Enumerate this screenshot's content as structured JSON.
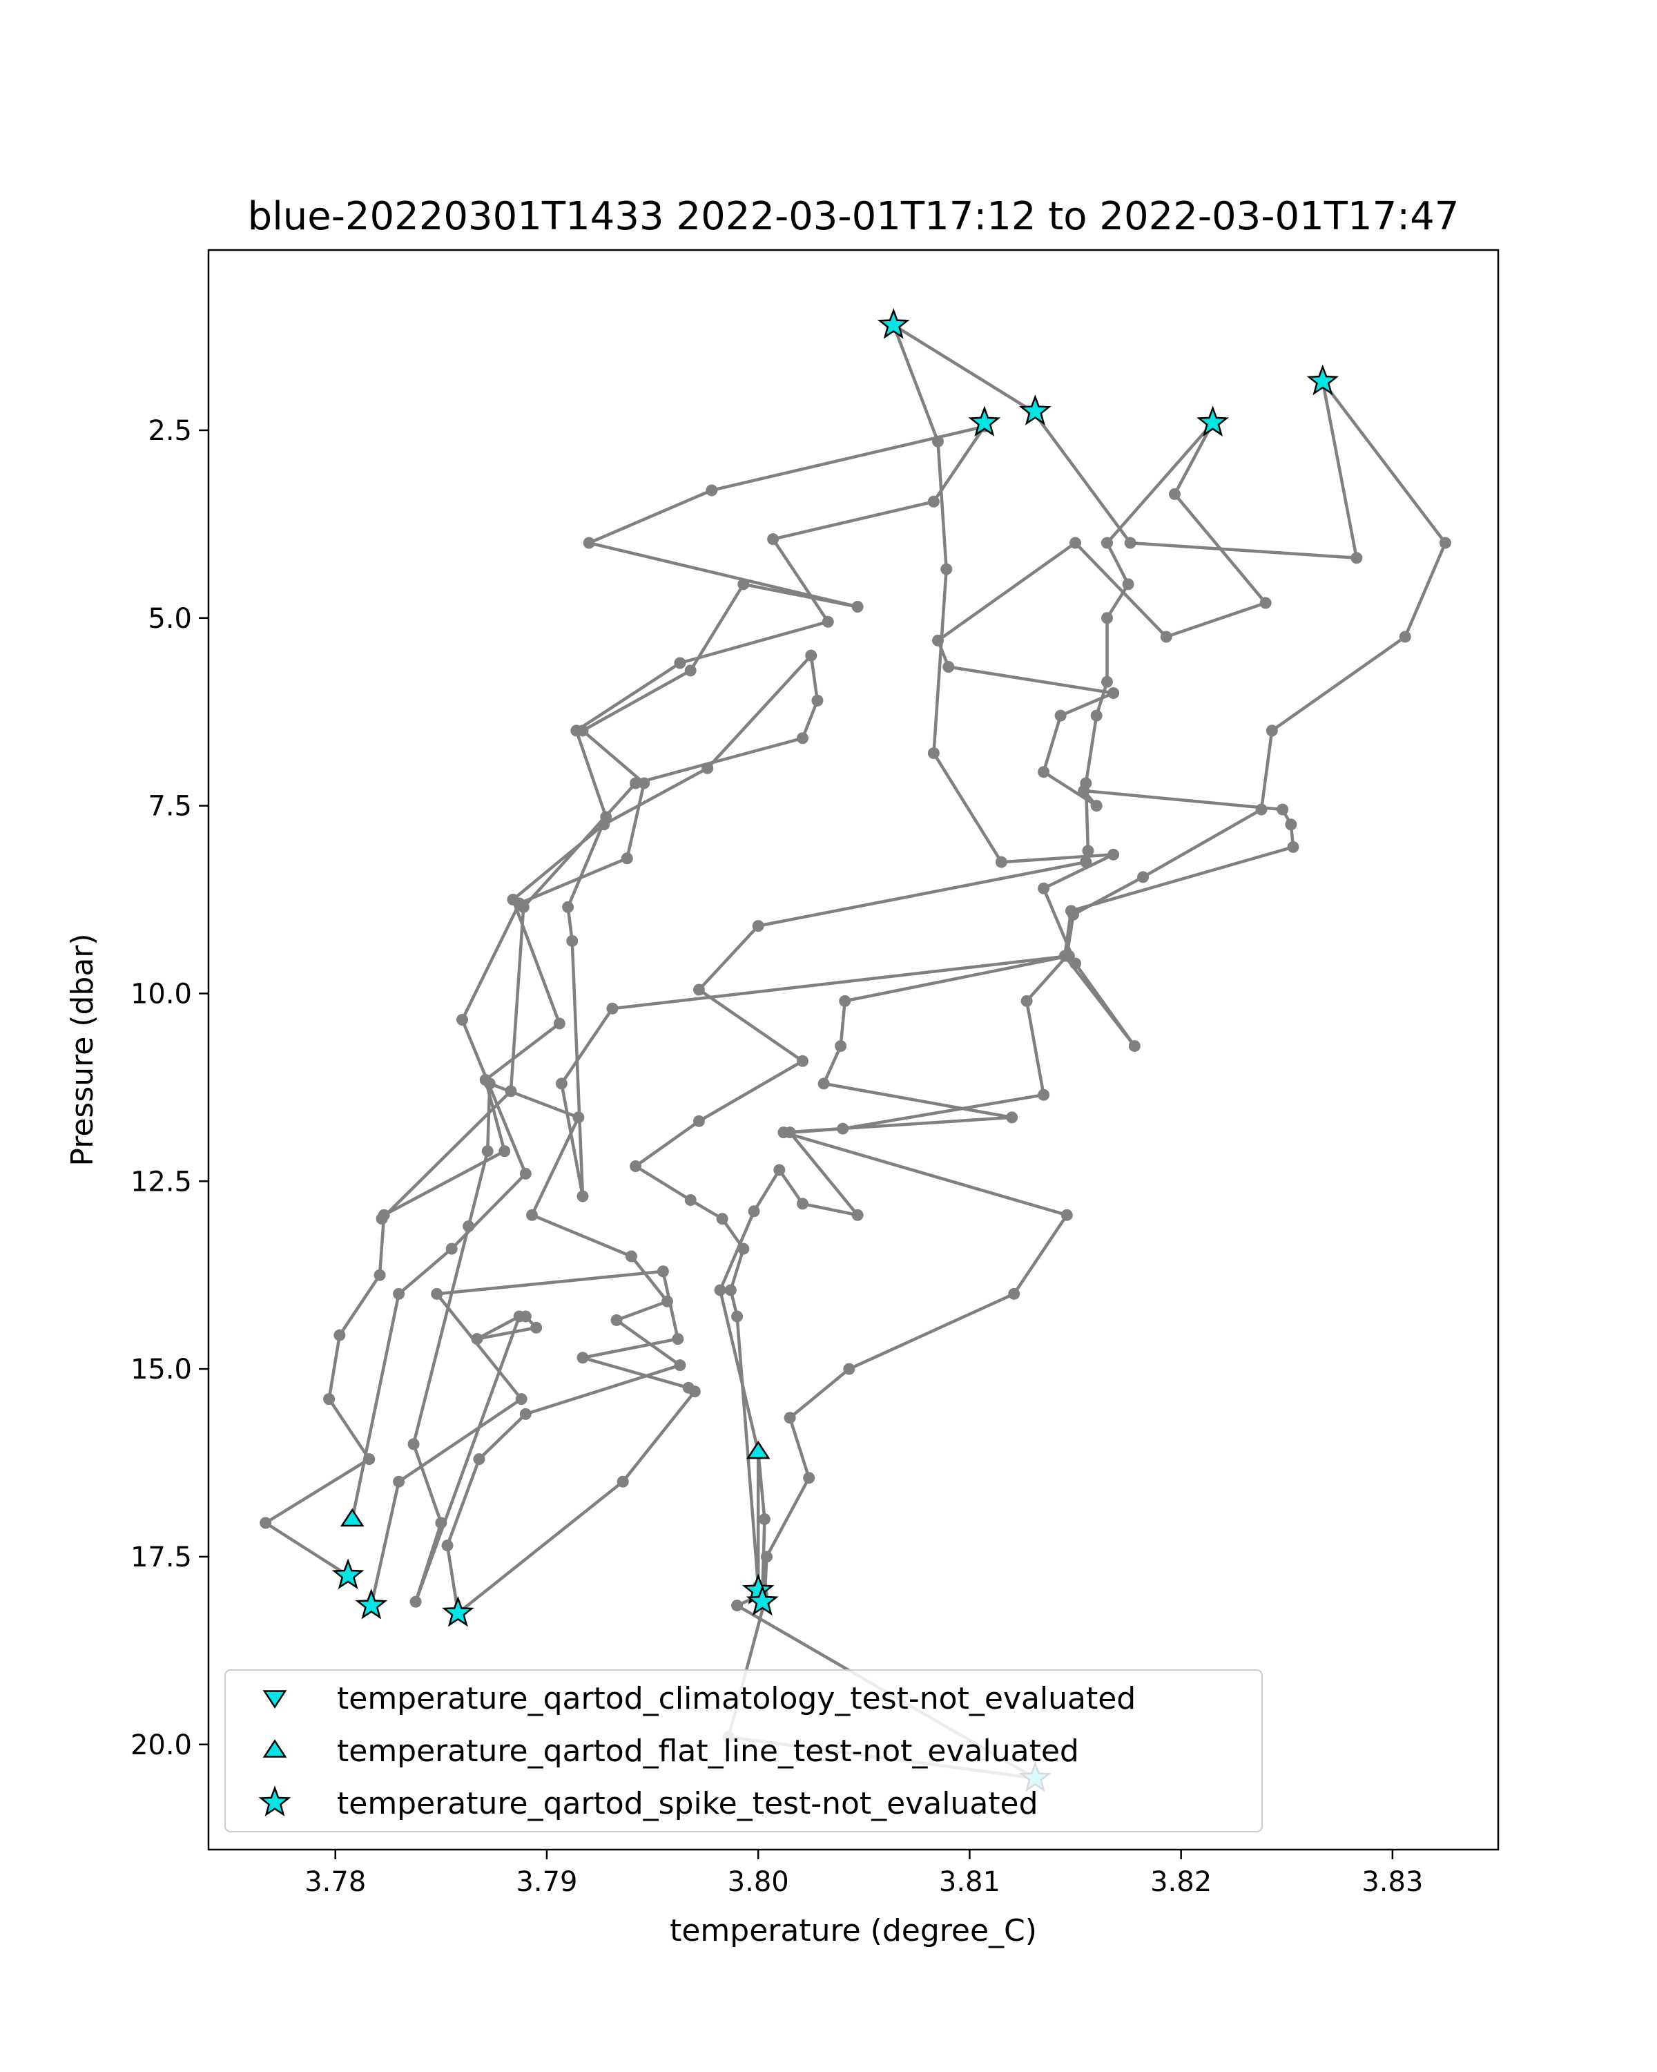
{
  "chart_data": {
    "type": "line",
    "title": "blue-20220301T1433 2022-03-01T17:12 to 2022-03-01T17:47",
    "xlabel": "temperature (degree_C)",
    "ylabel": "Pressure (dbar)",
    "xlim": [
      3.774,
      3.835
    ],
    "ylim": [
      21.4,
      0.1
    ],
    "y_inverted": true,
    "grid": false,
    "x_ticks": [
      3.78,
      3.79,
      3.8,
      3.81,
      3.82,
      3.83
    ],
    "x_tick_labels": [
      "3.78",
      "3.79",
      "3.80",
      "3.81",
      "3.82",
      "3.83"
    ],
    "y_ticks": [
      2.5,
      5.0,
      7.5,
      10.0,
      12.5,
      15.0,
      17.5,
      20.0
    ],
    "y_tick_labels": [
      "2.5",
      "5.0",
      "7.5",
      "10.0",
      "12.5",
      "15.0",
      "17.5",
      "20.0"
    ],
    "line_color": "#808080",
    "marker_color": "#00e5e5",
    "profile": [
      {
        "x": 3.7986,
        "y": 19.9
      },
      {
        "x": 3.8131,
        "y": 20.45
      },
      {
        "x": 3.799,
        "y": 18.15
      },
      {
        "x": 3.8002,
        "y": 18.0
      },
      {
        "x": 3.8003,
        "y": 17.0
      },
      {
        "x": 3.8,
        "y": 16.1
      },
      {
        "x": 3.8,
        "y": 17.9
      },
      {
        "x": 3.799,
        "y": 14.3
      },
      {
        "x": 3.7987,
        "y": 13.95
      },
      {
        "x": 3.7993,
        "y": 13.4
      },
      {
        "x": 3.7983,
        "y": 13.0
      },
      {
        "x": 3.7968,
        "y": 12.75
      },
      {
        "x": 3.7942,
        "y": 12.3
      },
      {
        "x": 3.7972,
        "y": 11.7
      },
      {
        "x": 3.8021,
        "y": 10.9
      },
      {
        "x": 3.7972,
        "y": 9.95
      },
      {
        "x": 3.8,
        "y": 9.1
      },
      {
        "x": 3.8155,
        "y": 8.25
      },
      {
        "x": 3.8156,
        "y": 8.1
      },
      {
        "x": 3.8155,
        "y": 7.2
      },
      {
        "x": 3.816,
        "y": 6.3
      },
      {
        "x": 3.8165,
        "y": 5.85
      },
      {
        "x": 3.8165,
        "y": 5.0
      },
      {
        "x": 3.8175,
        "y": 4.55
      },
      {
        "x": 3.8165,
        "y": 4.0
      },
      {
        "x": 3.8215,
        "y": 2.4
      },
      {
        "x": 3.8197,
        "y": 3.35
      },
      {
        "x": 3.824,
        "y": 4.8
      },
      {
        "x": 3.8193,
        "y": 5.25
      },
      {
        "x": 3.815,
        "y": 4.0
      },
      {
        "x": 3.8085,
        "y": 5.3
      },
      {
        "x": 3.809,
        "y": 5.65
      },
      {
        "x": 3.8168,
        "y": 6.0
      },
      {
        "x": 3.8143,
        "y": 6.3
      },
      {
        "x": 3.8135,
        "y": 7.05
      },
      {
        "x": 3.816,
        "y": 7.5
      },
      {
        "x": 3.8154,
        "y": 7.3
      },
      {
        "x": 3.8248,
        "y": 7.55
      },
      {
        "x": 3.8252,
        "y": 7.75
      },
      {
        "x": 3.8253,
        "y": 8.05
      },
      {
        "x": 3.8148,
        "y": 8.9
      },
      {
        "x": 3.8145,
        "y": 9.5
      },
      {
        "x": 3.8178,
        "y": 10.7
      },
      {
        "x": 3.815,
        "y": 9.6
      },
      {
        "x": 3.8135,
        "y": 8.6
      },
      {
        "x": 3.8168,
        "y": 8.15
      },
      {
        "x": 3.8115,
        "y": 8.25
      },
      {
        "x": 3.8083,
        "y": 6.8
      },
      {
        "x": 3.8089,
        "y": 4.35
      },
      {
        "x": 3.8085,
        "y": 2.65
      },
      {
        "x": 3.8064,
        "y": 1.1
      },
      {
        "x": 3.813,
        "y": 2.25
      },
      {
        "x": 3.8176,
        "y": 4.0
      },
      {
        "x": 3.8283,
        "y": 4.2
      },
      {
        "x": 3.8267,
        "y": 1.85
      }
    ],
    "profile_2": [
      {
        "x": 3.8267,
        "y": 1.85
      },
      {
        "x": 3.8325,
        "y": 4.0
      },
      {
        "x": 3.8306,
        "y": 5.25
      },
      {
        "x": 3.8243,
        "y": 6.5
      },
      {
        "x": 3.8238,
        "y": 7.55
      },
      {
        "x": 3.8182,
        "y": 8.45
      },
      {
        "x": 3.8149,
        "y": 8.95
      },
      {
        "x": 3.8146,
        "y": 9.5
      },
      {
        "x": 3.8127,
        "y": 10.1
      },
      {
        "x": 3.8135,
        "y": 11.35
      },
      {
        "x": 3.804,
        "y": 11.8
      },
      {
        "x": 3.8015,
        "y": 11.85
      },
      {
        "x": 3.8047,
        "y": 12.95
      },
      {
        "x": 3.8021,
        "y": 12.8
      },
      {
        "x": 3.801,
        "y": 12.35
      },
      {
        "x": 3.7998,
        "y": 12.9
      },
      {
        "x": 3.7982,
        "y": 13.95
      },
      {
        "x": 3.8,
        "y": 16.1
      }
    ],
    "profile_3": [
      {
        "x": 3.7986,
        "y": 19.9
      },
      {
        "x": 3.8003,
        "y": 18.1
      },
      {
        "x": 3.8004,
        "y": 17.5
      },
      {
        "x": 3.8024,
        "y": 16.45
      },
      {
        "x": 3.8015,
        "y": 15.65
      },
      {
        "x": 3.8043,
        "y": 15.0
      },
      {
        "x": 3.8121,
        "y": 14.0
      },
      {
        "x": 3.8146,
        "y": 12.95
      },
      {
        "x": 3.8012,
        "y": 11.85
      },
      {
        "x": 3.812,
        "y": 11.65
      },
      {
        "x": 3.8031,
        "y": 11.2
      },
      {
        "x": 3.8039,
        "y": 10.7
      },
      {
        "x": 3.8041,
        "y": 10.1
      },
      {
        "x": 3.8147,
        "y": 9.5
      },
      {
        "x": 3.7931,
        "y": 10.2
      },
      {
        "x": 3.7907,
        "y": 11.2
      },
      {
        "x": 3.7917,
        "y": 12.7
      },
      {
        "x": 3.7912,
        "y": 9.3
      },
      {
        "x": 3.791,
        "y": 8.85
      },
      {
        "x": 3.7928,
        "y": 7.65
      },
      {
        "x": 3.7914,
        "y": 6.5
      },
      {
        "x": 3.7963,
        "y": 5.6
      },
      {
        "x": 3.8033,
        "y": 5.05
      },
      {
        "x": 3.8007,
        "y": 3.95
      },
      {
        "x": 3.8083,
        "y": 3.45
      },
      {
        "x": 3.8107,
        "y": 2.45
      },
      {
        "x": 3.7978,
        "y": 3.3
      },
      {
        "x": 3.792,
        "y": 4.0
      },
      {
        "x": 3.8047,
        "y": 4.85
      },
      {
        "x": 3.7993,
        "y": 4.55
      },
      {
        "x": 3.7968,
        "y": 5.7
      },
      {
        "x": 3.7917,
        "y": 6.5
      },
      {
        "x": 3.7946,
        "y": 7.2
      },
      {
        "x": 3.7938,
        "y": 8.2
      },
      {
        "x": 3.7887,
        "y": 8.8
      },
      {
        "x": 3.786,
        "y": 10.35
      },
      {
        "x": 3.789,
        "y": 12.4
      },
      {
        "x": 3.7855,
        "y": 13.4
      },
      {
        "x": 3.783,
        "y": 14.0
      },
      {
        "x": 3.7808,
        "y": 17.0
      }
    ],
    "profile_4": [
      {
        "x": 3.7817,
        "y": 18.15
      },
      {
        "x": 3.783,
        "y": 16.5
      },
      {
        "x": 3.7888,
        "y": 15.4
      },
      {
        "x": 3.7848,
        "y": 14.0
      },
      {
        "x": 3.7955,
        "y": 13.7
      },
      {
        "x": 3.7962,
        "y": 14.6
      },
      {
        "x": 3.7917,
        "y": 14.85
      },
      {
        "x": 3.7967,
        "y": 15.25
      },
      {
        "x": 3.797,
        "y": 15.3
      },
      {
        "x": 3.7936,
        "y": 16.5
      },
      {
        "x": 3.7858,
        "y": 18.25
      },
      {
        "x": 3.7853,
        "y": 17.35
      },
      {
        "x": 3.7868,
        "y": 16.2
      },
      {
        "x": 3.789,
        "y": 15.6
      },
      {
        "x": 3.7963,
        "y": 14.95
      },
      {
        "x": 3.7933,
        "y": 14.35
      },
      {
        "x": 3.7957,
        "y": 14.1
      },
      {
        "x": 3.794,
        "y": 13.5
      },
      {
        "x": 3.7893,
        "y": 12.95
      },
      {
        "x": 3.7915,
        "y": 11.65
      },
      {
        "x": 3.7873,
        "y": 11.2
      },
      {
        "x": 3.7872,
        "y": 12.1
      },
      {
        "x": 3.7863,
        "y": 13.1
      },
      {
        "x": 3.7837,
        "y": 16.0
      },
      {
        "x": 3.785,
        "y": 17.05
      },
      {
        "x": 3.7838,
        "y": 18.1
      },
      {
        "x": 3.7887,
        "y": 14.3
      },
      {
        "x": 3.7867,
        "y": 14.6
      },
      {
        "x": 3.7895,
        "y": 14.45
      },
      {
        "x": 3.789,
        "y": 14.3
      }
    ],
    "profile_5": [
      {
        "x": 3.7806,
        "y": 17.75
      },
      {
        "x": 3.7767,
        "y": 17.05
      },
      {
        "x": 3.7816,
        "y": 16.2
      },
      {
        "x": 3.7797,
        "y": 15.4
      },
      {
        "x": 3.7802,
        "y": 14.55
      },
      {
        "x": 3.7821,
        "y": 13.75
      },
      {
        "x": 3.7823,
        "y": 12.95
      },
      {
        "x": 3.788,
        "y": 12.1
      },
      {
        "x": 3.7871,
        "y": 11.15
      },
      {
        "x": 3.7906,
        "y": 10.4
      },
      {
        "x": 3.7884,
        "y": 8.75
      },
      {
        "x": 3.7927,
        "y": 7.75
      },
      {
        "x": 3.7976,
        "y": 7.0
      },
      {
        "x": 3.8025,
        "y": 5.5
      },
      {
        "x": 3.8028,
        "y": 6.1
      },
      {
        "x": 3.8021,
        "y": 6.6
      },
      {
        "x": 3.7942,
        "y": 7.2
      },
      {
        "x": 3.7889,
        "y": 8.85
      },
      {
        "x": 3.7883,
        "y": 11.3
      },
      {
        "x": 3.7822,
        "y": 13.0
      }
    ],
    "markers_spike": [
      {
        "x": 3.8064,
        "y": 1.1
      },
      {
        "x": 3.8107,
        "y": 2.4
      },
      {
        "x": 3.8131,
        "y": 2.25
      },
      {
        "x": 3.8215,
        "y": 2.4
      },
      {
        "x": 3.8267,
        "y": 1.85
      },
      {
        "x": 3.7806,
        "y": 17.75
      },
      {
        "x": 3.7817,
        "y": 18.15
      },
      {
        "x": 3.7858,
        "y": 18.25
      },
      {
        "x": 3.8,
        "y": 17.95
      },
      {
        "x": 3.8002,
        "y": 18.1
      },
      {
        "x": 3.8131,
        "y": 20.45
      }
    ],
    "markers_flat_line": [
      {
        "x": 3.7808,
        "y": 17.0
      },
      {
        "x": 3.8,
        "y": 16.1
      }
    ],
    "markers_climatology": [],
    "legend": {
      "placement": "lower-left",
      "entries": [
        {
          "label": "temperature_qartod_climatology_test-not_evaluated",
          "marker": "triangle-down"
        },
        {
          "label": "temperature_qartod_flat_line_test-not_evaluated",
          "marker": "triangle-up"
        },
        {
          "label": "temperature_qartod_spike_test-not_evaluated",
          "marker": "star"
        }
      ]
    }
  }
}
